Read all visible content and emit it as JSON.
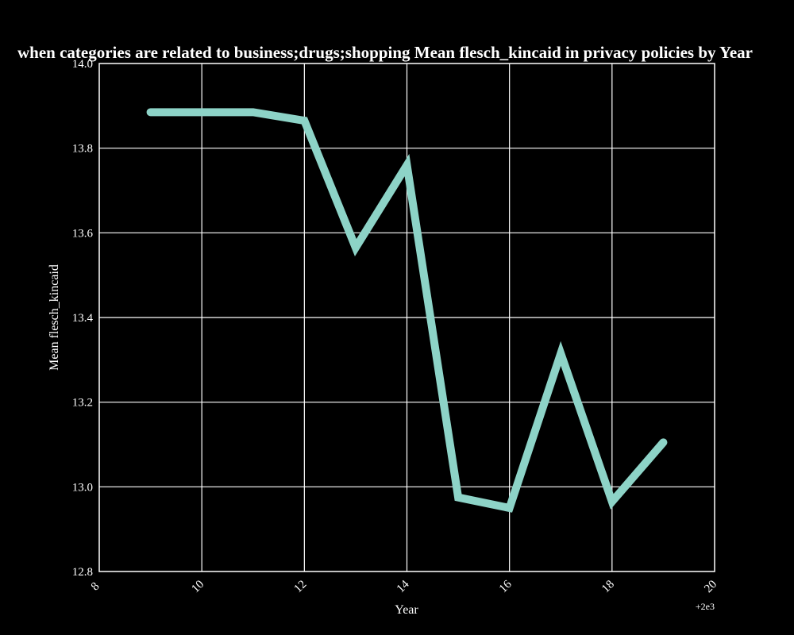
{
  "chart_data": {
    "type": "line",
    "title": "when categories are related to business;drugs;shopping Mean flesch_kincaid in privacy policies by Year",
    "xlabel": "Year",
    "ylabel": "Mean flesch_kincaid",
    "x_offset_label": "+2e3",
    "x": [
      2009,
      2010,
      2011,
      2012,
      2013,
      2014,
      2015,
      2016,
      2017,
      2018,
      2019
    ],
    "series": [
      {
        "values": [
          13.885,
          13.885,
          13.885,
          13.865,
          13.565,
          13.76,
          12.975,
          12.95,
          13.315,
          12.965,
          13.105
        ]
      }
    ],
    "xlim": [
      2008,
      2020
    ],
    "ylim": [
      12.8,
      14.0
    ],
    "x_ticks": [
      8,
      10,
      12,
      14,
      16,
      18,
      20
    ],
    "y_ticks": [
      "12.8",
      "13.0",
      "13.2",
      "13.4",
      "13.6",
      "13.8",
      "14.0"
    ],
    "grid": true,
    "line_color": "#8dd3c7",
    "background": "#000000",
    "foreground": "#ffffff"
  }
}
